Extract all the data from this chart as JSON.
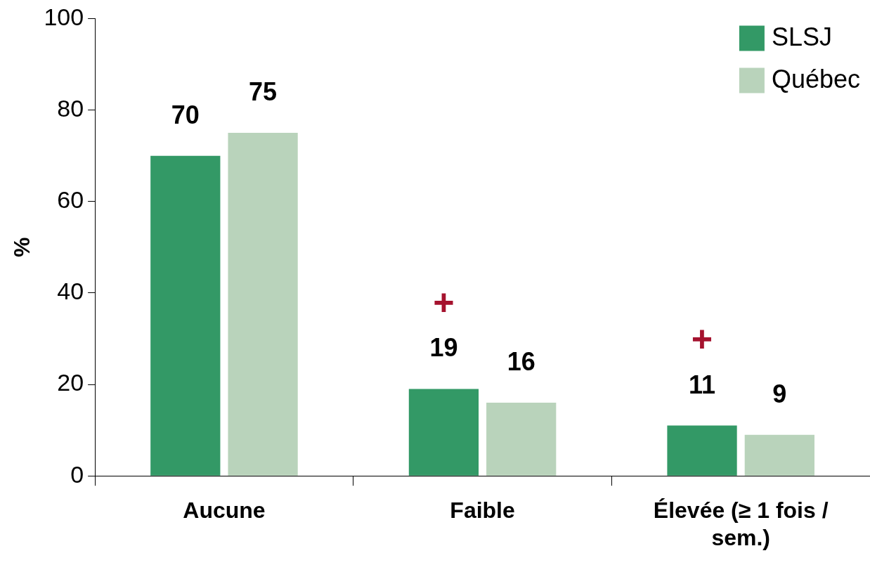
{
  "chart_data": {
    "type": "bar",
    "ylabel": "%",
    "categories": [
      "Aucune",
      "Faible",
      "Élevée (≥ 1 fois / sem.)"
    ],
    "series": [
      {
        "name": "SLSJ",
        "color": "#339966",
        "values": [
          70,
          19,
          11
        ]
      },
      {
        "name": "Québec",
        "color": "#b9d3bb",
        "values": [
          75,
          16,
          9
        ]
      }
    ],
    "ylim": [
      0,
      100
    ],
    "yticks": [
      0,
      20,
      40,
      60,
      80,
      100
    ],
    "grid": false,
    "legend": "top right",
    "data_labels": true,
    "annotations": [
      "+",
      "+"
    ]
  }
}
